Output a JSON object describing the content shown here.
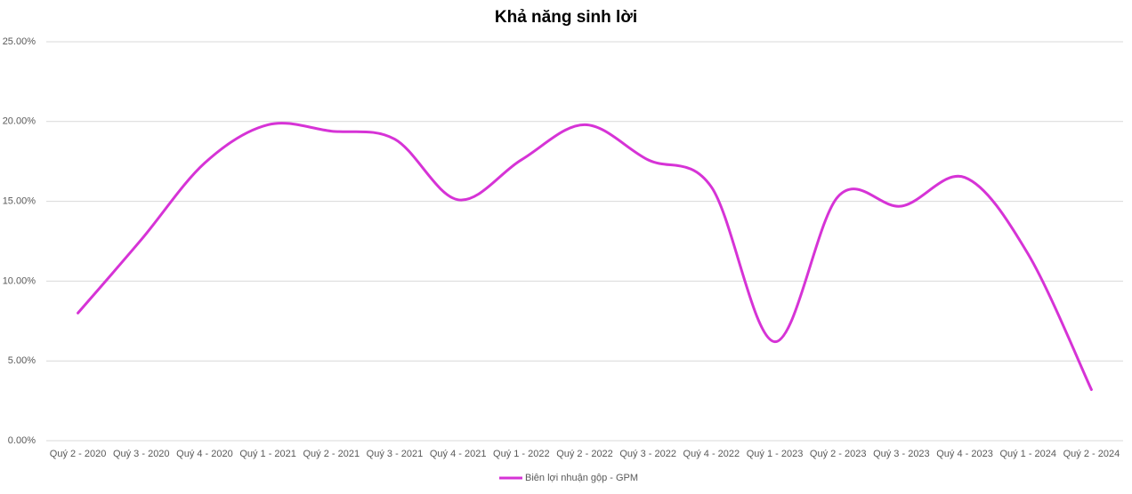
{
  "chart_data": {
    "type": "line",
    "title": "Khả năng sinh lời",
    "categories": [
      "Quý 2 - 2020",
      "Quý 3 - 2020",
      "Quý 4 - 2020",
      "Quý 1 - 2021",
      "Quý 2 - 2021",
      "Quý 3 - 2021",
      "Quý 4 - 2021",
      "Quý 1 - 2022",
      "Quý 2 - 2022",
      "Quý 3 - 2022",
      "Quý 4 - 2022",
      "Quý 1 - 2023",
      "Quý 2 - 2023",
      "Quý 3 - 2023",
      "Quý 4 - 2023",
      "Quý 1 - 2024",
      "Quý 2 - 2024"
    ],
    "series": [
      {
        "name": "Biên lợi nhuận gộp - GPM",
        "color": "#d633d6",
        "values": [
          8.0,
          12.6,
          17.4,
          19.8,
          19.4,
          18.9,
          15.1,
          17.6,
          19.8,
          17.6,
          15.9,
          6.2,
          15.3,
          14.7,
          16.5,
          11.7,
          3.2
        ]
      }
    ],
    "ylim": [
      0,
      25
    ],
    "yticks": [
      {
        "value": 0,
        "label": "0.00%"
      },
      {
        "value": 5,
        "label": "5.00%"
      },
      {
        "value": 10,
        "label": "10.00%"
      },
      {
        "value": 15,
        "label": "15.00%"
      },
      {
        "value": 20,
        "label": "20.00%"
      },
      {
        "value": 25,
        "label": "25.00%"
      }
    ],
    "grid": true,
    "smooth": true,
    "legend": "bottom"
  }
}
